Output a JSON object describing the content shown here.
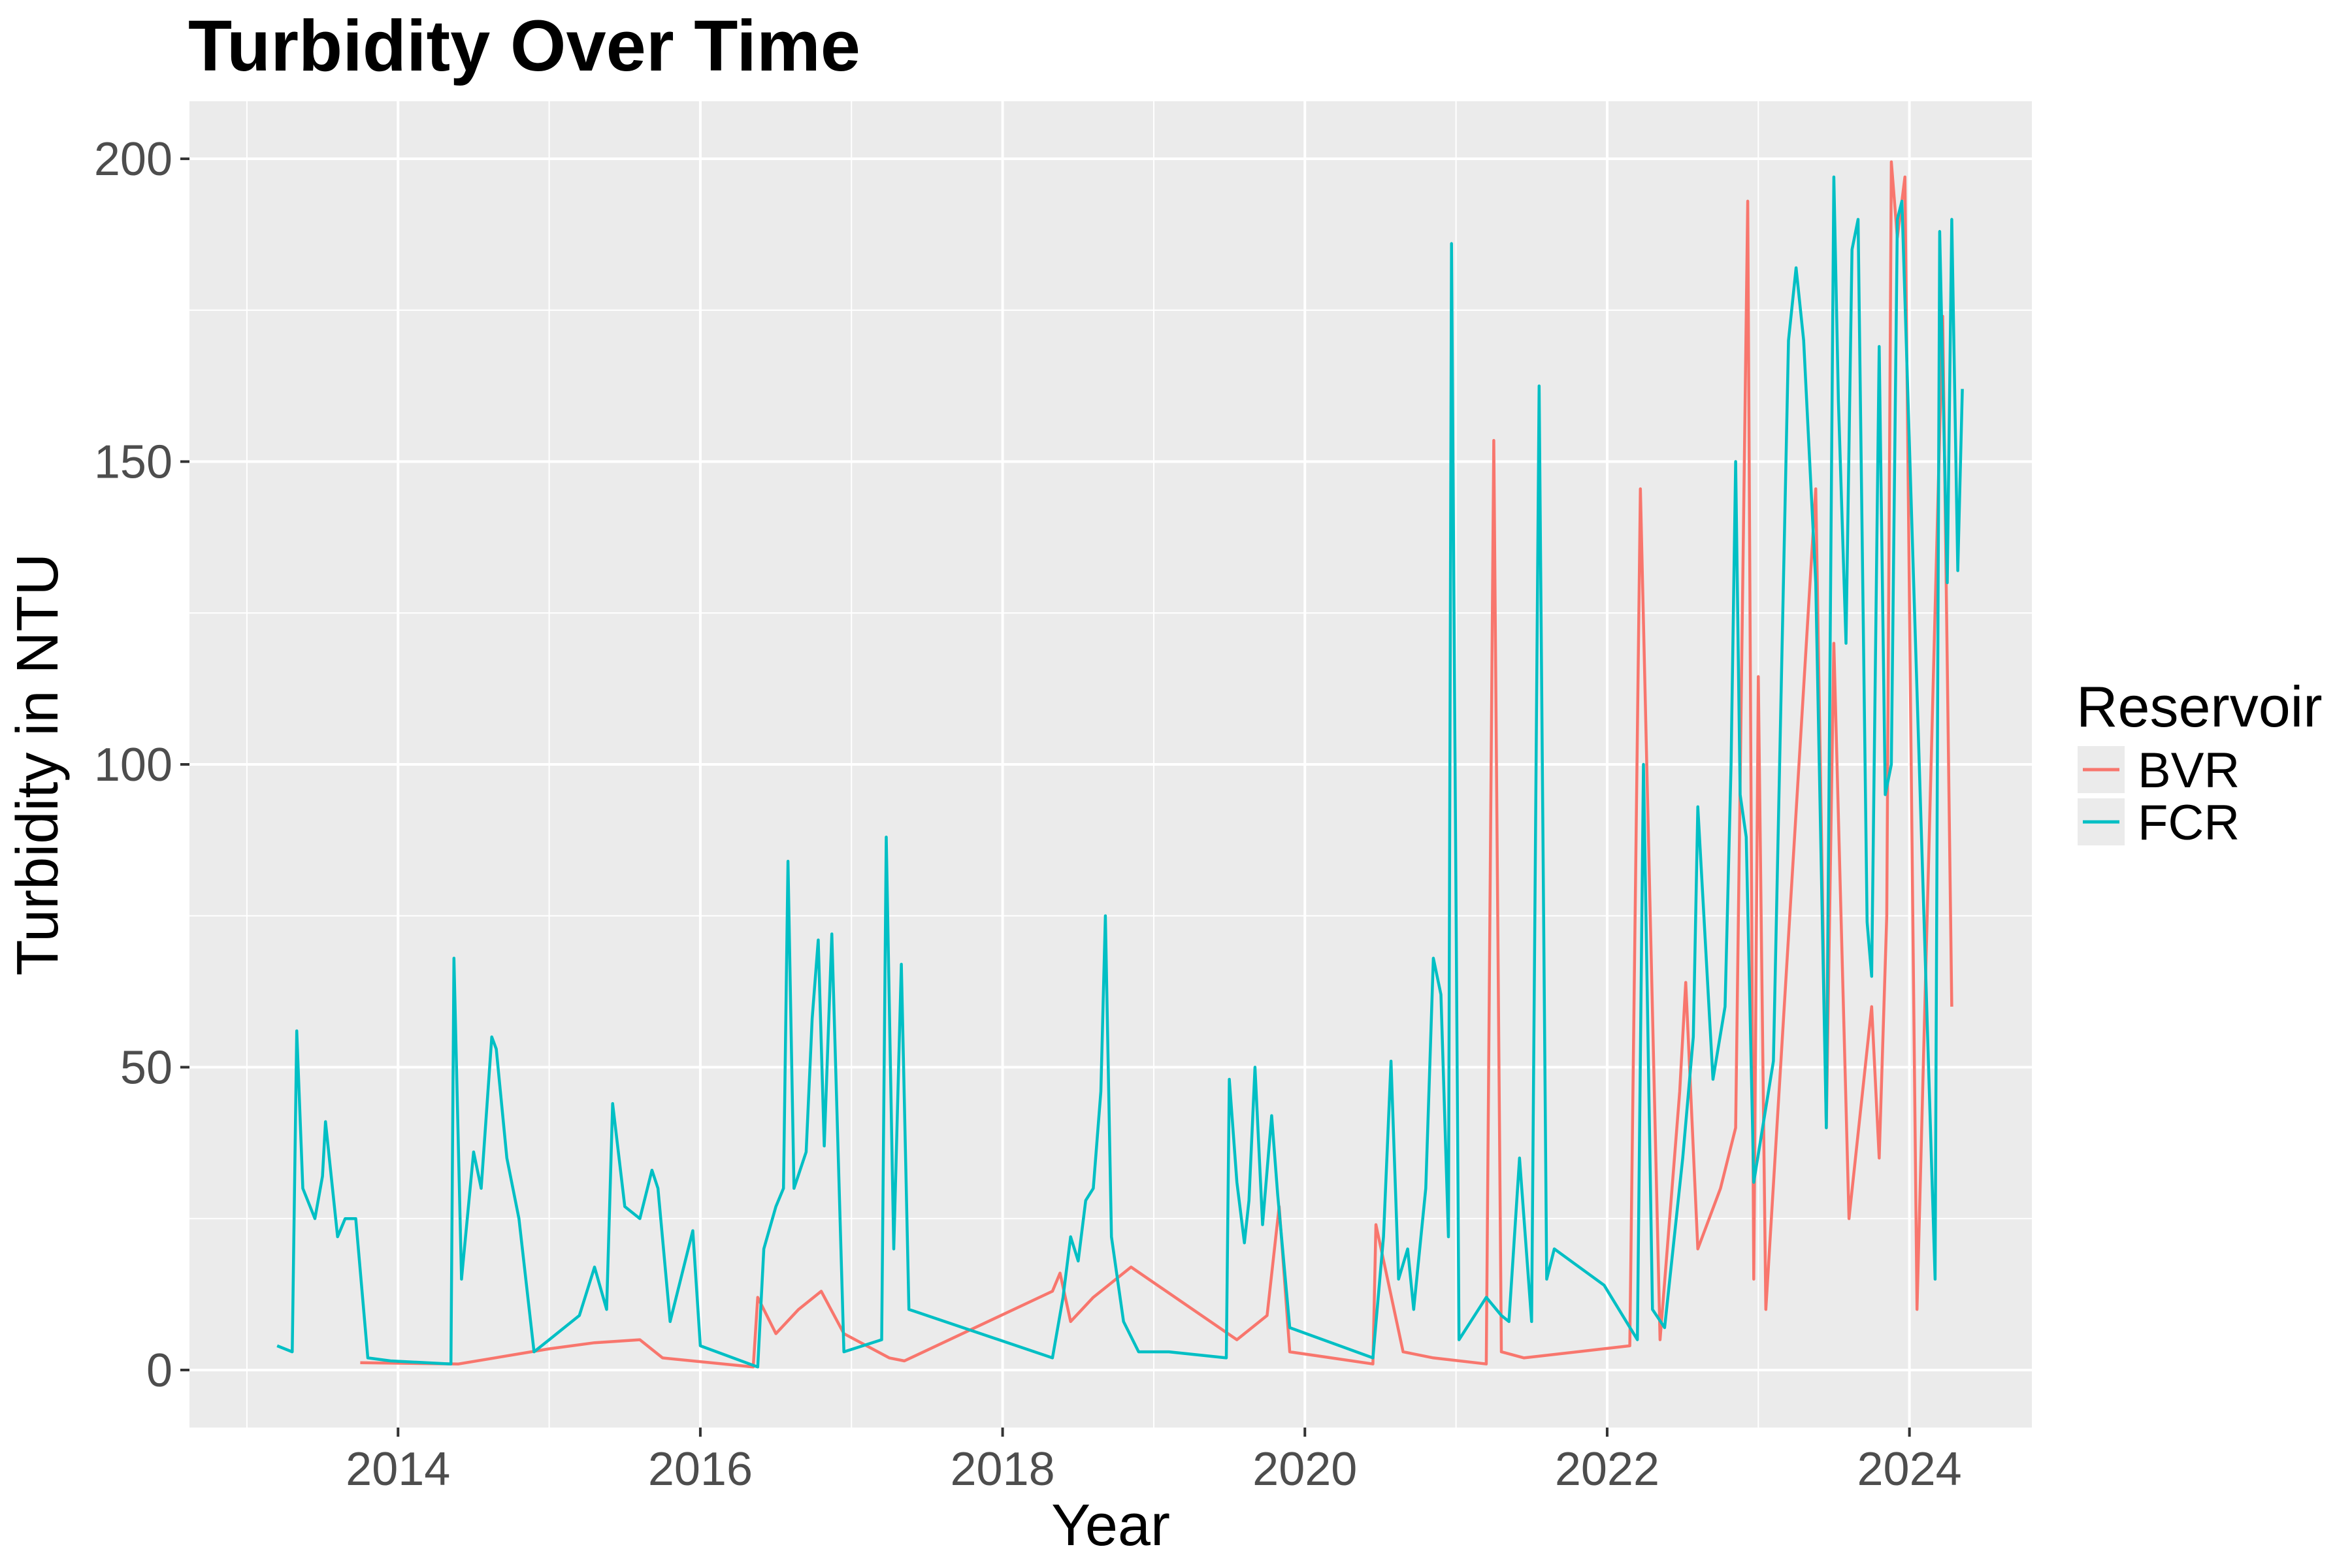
{
  "chart_data": {
    "type": "line",
    "title": "Turbidity Over Time",
    "xlabel": "Year",
    "ylabel": "Turbidity in NTU",
    "xlim": [
      2012.62,
      2024.81
    ],
    "ylim": [
      -9.5,
      209.5
    ],
    "x_ticks": [
      2014,
      2016,
      2018,
      2020,
      2022,
      2024
    ],
    "x_tick_labels": [
      "2014",
      "2016",
      "2018",
      "2020",
      "2022",
      "2024"
    ],
    "y_ticks": [
      0,
      50,
      100,
      150,
      200
    ],
    "y_tick_labels": [
      "0",
      "50",
      "100",
      "150",
      "200"
    ],
    "grid": true,
    "panel_background": "#ebebeb",
    "legend": {
      "title": "Reservoir",
      "position": "right",
      "entries": [
        {
          "name": "BVR",
          "color": "#F8766D"
        },
        {
          "name": "FCR",
          "color": "#00BFC4"
        }
      ]
    },
    "series": [
      {
        "name": "BVR",
        "color": "#F8766D",
        "points": [
          [
            2013.75,
            1.2
          ],
          [
            2014.4,
            1.0
          ],
          [
            2015.0,
            3.5
          ],
          [
            2015.3,
            4.5
          ],
          [
            2015.6,
            5.0
          ],
          [
            2015.75,
            2.0
          ],
          [
            2016.35,
            0.5
          ],
          [
            2016.38,
            12.0
          ],
          [
            2016.5,
            6.0
          ],
          [
            2016.65,
            10.0
          ],
          [
            2016.8,
            13.0
          ],
          [
            2016.95,
            6.0
          ],
          [
            2017.25,
            2.0
          ],
          [
            2017.35,
            1.5
          ],
          [
            2018.33,
            13.0
          ],
          [
            2018.38,
            16.0
          ],
          [
            2018.45,
            8.0
          ],
          [
            2018.6,
            12.0
          ],
          [
            2018.85,
            17.0
          ],
          [
            2019.55,
            5.0
          ],
          [
            2019.75,
            9.0
          ],
          [
            2019.83,
            27.0
          ],
          [
            2019.9,
            3.0
          ],
          [
            2020.45,
            1.0
          ],
          [
            2020.47,
            24.0
          ],
          [
            2020.65,
            3.0
          ],
          [
            2020.85,
            2.0
          ],
          [
            2021.2,
            1.0
          ],
          [
            2021.25,
            153.5
          ],
          [
            2021.3,
            3.0
          ],
          [
            2021.45,
            2.0
          ],
          [
            2022.15,
            4.0
          ],
          [
            2022.22,
            145.5
          ],
          [
            2022.35,
            5.0
          ],
          [
            2022.48,
            46.0
          ],
          [
            2022.52,
            64.0
          ],
          [
            2022.6,
            20.0
          ],
          [
            2022.75,
            30.0
          ],
          [
            2022.85,
            40.0
          ],
          [
            2022.93,
            193.0
          ],
          [
            2022.97,
            15.0
          ],
          [
            2023.0,
            114.5
          ],
          [
            2023.05,
            10.0
          ],
          [
            2023.38,
            145.5
          ],
          [
            2023.45,
            40.0
          ],
          [
            2023.5,
            120.0
          ],
          [
            2023.6,
            25.0
          ],
          [
            2023.75,
            60.0
          ],
          [
            2023.8,
            35.0
          ],
          [
            2023.85,
            75.0
          ],
          [
            2023.88,
            199.5
          ],
          [
            2023.92,
            187.0
          ],
          [
            2023.97,
            197.0
          ],
          [
            2024.05,
            10.0
          ],
          [
            2024.22,
            174.0
          ],
          [
            2024.28,
            60.0
          ]
        ]
      },
      {
        "name": "FCR",
        "color": "#00BFC4",
        "points": [
          [
            2013.2,
            4.0
          ],
          [
            2013.3,
            3.0
          ],
          [
            2013.33,
            56.0
          ],
          [
            2013.37,
            30.0
          ],
          [
            2013.45,
            25.0
          ],
          [
            2013.5,
            32.0
          ],
          [
            2013.52,
            41.0
          ],
          [
            2013.6,
            22.0
          ],
          [
            2013.65,
            25.0
          ],
          [
            2013.72,
            25.0
          ],
          [
            2013.8,
            2.0
          ],
          [
            2013.95,
            1.5
          ],
          [
            2014.35,
            1.0
          ],
          [
            2014.37,
            68.0
          ],
          [
            2014.42,
            15.0
          ],
          [
            2014.5,
            36.0
          ],
          [
            2014.55,
            30.0
          ],
          [
            2014.62,
            55.0
          ],
          [
            2014.65,
            53.0
          ],
          [
            2014.72,
            35.0
          ],
          [
            2014.8,
            25.0
          ],
          [
            2014.9,
            3.0
          ],
          [
            2015.0,
            5.0
          ],
          [
            2015.2,
            9.0
          ],
          [
            2015.3,
            17.0
          ],
          [
            2015.38,
            10.0
          ],
          [
            2015.42,
            44.0
          ],
          [
            2015.5,
            27.0
          ],
          [
            2015.6,
            25.0
          ],
          [
            2015.68,
            33.0
          ],
          [
            2015.72,
            30.0
          ],
          [
            2015.8,
            8.0
          ],
          [
            2015.95,
            23.0
          ],
          [
            2016.0,
            4.0
          ],
          [
            2016.38,
            0.5
          ],
          [
            2016.42,
            20.0
          ],
          [
            2016.5,
            27.0
          ],
          [
            2016.55,
            30.0
          ],
          [
            2016.58,
            84.0
          ],
          [
            2016.62,
            30.0
          ],
          [
            2016.7,
            36.0
          ],
          [
            2016.74,
            58.0
          ],
          [
            2016.78,
            71.0
          ],
          [
            2016.82,
            37.0
          ],
          [
            2016.87,
            72.0
          ],
          [
            2016.95,
            3.0
          ],
          [
            2017.2,
            5.0
          ],
          [
            2017.23,
            88.0
          ],
          [
            2017.28,
            20.0
          ],
          [
            2017.33,
            67.0
          ],
          [
            2017.38,
            10.0
          ],
          [
            2018.33,
            2.0
          ],
          [
            2018.4,
            12.0
          ],
          [
            2018.45,
            22.0
          ],
          [
            2018.5,
            18.0
          ],
          [
            2018.55,
            28.0
          ],
          [
            2018.6,
            30.0
          ],
          [
            2018.65,
            46.0
          ],
          [
            2018.68,
            75.0
          ],
          [
            2018.72,
            22.0
          ],
          [
            2018.8,
            8.0
          ],
          [
            2018.9,
            3.0
          ],
          [
            2019.1,
            3.0
          ],
          [
            2019.48,
            2.0
          ],
          [
            2019.5,
            48.0
          ],
          [
            2019.55,
            31.0
          ],
          [
            2019.6,
            21.0
          ],
          [
            2019.63,
            28.0
          ],
          [
            2019.67,
            50.0
          ],
          [
            2019.72,
            24.0
          ],
          [
            2019.78,
            42.0
          ],
          [
            2019.82,
            29.0
          ],
          [
            2019.9,
            7.0
          ],
          [
            2020.45,
            2.0
          ],
          [
            2020.52,
            22.0
          ],
          [
            2020.57,
            51.0
          ],
          [
            2020.62,
            15.0
          ],
          [
            2020.68,
            20.0
          ],
          [
            2020.72,
            10.0
          ],
          [
            2020.8,
            30.0
          ],
          [
            2020.85,
            68.0
          ],
          [
            2020.9,
            62.0
          ],
          [
            2020.95,
            22.0
          ],
          [
            2020.97,
            186.0
          ],
          [
            2021.02,
            5.0
          ],
          [
            2021.2,
            12.0
          ],
          [
            2021.3,
            9.0
          ],
          [
            2021.35,
            8.0
          ],
          [
            2021.42,
            35.0
          ],
          [
            2021.5,
            8.0
          ],
          [
            2021.55,
            162.5
          ],
          [
            2021.6,
            15.0
          ],
          [
            2021.65,
            20.0
          ],
          [
            2021.98,
            14.0
          ],
          [
            2022.2,
            5.0
          ],
          [
            2022.24,
            100.0
          ],
          [
            2022.3,
            10.0
          ],
          [
            2022.38,
            7.0
          ],
          [
            2022.5,
            35.0
          ],
          [
            2022.57,
            55.0
          ],
          [
            2022.6,
            93.0
          ],
          [
            2022.7,
            48.0
          ],
          [
            2022.78,
            60.0
          ],
          [
            2022.82,
            100.0
          ],
          [
            2022.85,
            150.0
          ],
          [
            2022.88,
            95.0
          ],
          [
            2022.92,
            88.0
          ],
          [
            2022.97,
            31.0
          ],
          [
            2023.1,
            51.0
          ],
          [
            2023.2,
            170.0
          ],
          [
            2023.25,
            182.0
          ],
          [
            2023.3,
            170.0
          ],
          [
            2023.38,
            130.0
          ],
          [
            2023.45,
            40.0
          ],
          [
            2023.5,
            197.0
          ],
          [
            2023.53,
            160.0
          ],
          [
            2023.58,
            120.0
          ],
          [
            2023.62,
            185.0
          ],
          [
            2023.66,
            190.0
          ],
          [
            2023.72,
            74.0
          ],
          [
            2023.75,
            65.0
          ],
          [
            2023.8,
            169.0
          ],
          [
            2023.84,
            95.0
          ],
          [
            2023.88,
            100.0
          ],
          [
            2023.92,
            190.0
          ],
          [
            2023.95,
            193.0
          ],
          [
            2024.17,
            15.0
          ],
          [
            2024.2,
            188.0
          ],
          [
            2024.25,
            130.0
          ],
          [
            2024.28,
            190.0
          ],
          [
            2024.32,
            132.0
          ],
          [
            2024.35,
            162.0
          ]
        ]
      }
    ]
  }
}
